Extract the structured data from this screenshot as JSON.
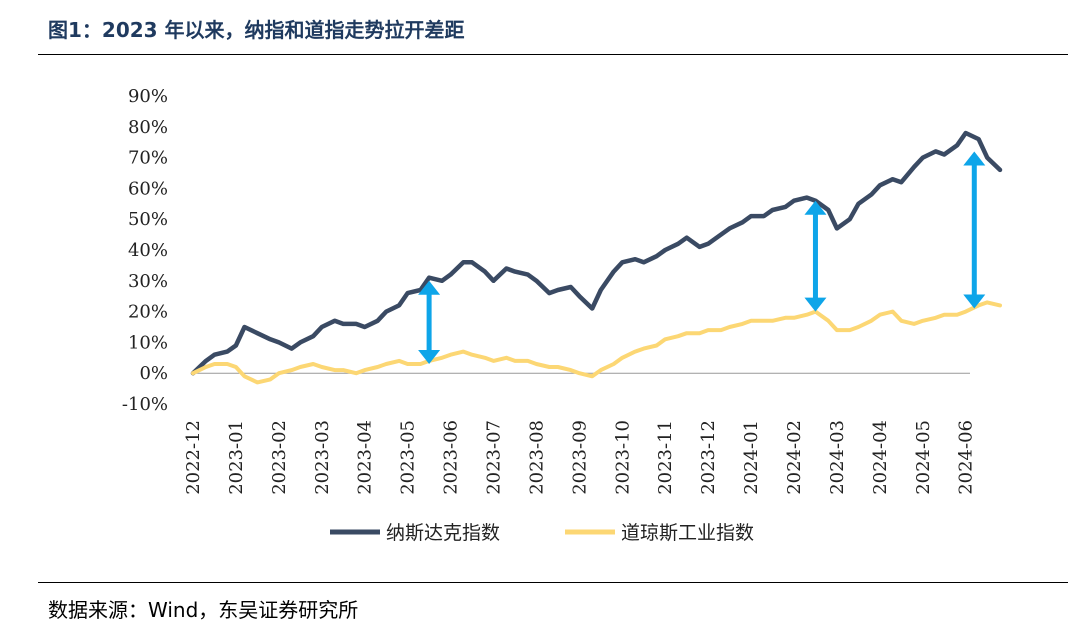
{
  "title": "图1：2023 年以来，纳指和道指走势拉开差距",
  "source": "数据来源：Wind，东吴证券研究所",
  "chart_data": {
    "type": "line",
    "title": "",
    "xlabel": "",
    "ylabel": "",
    "ylim": [
      -10,
      90
    ],
    "yticks": [
      "90%",
      "80%",
      "70%",
      "60%",
      "50%",
      "40%",
      "30%",
      "20%",
      "10%",
      "0%",
      "-10%"
    ],
    "ytick_values": [
      90,
      80,
      70,
      60,
      50,
      40,
      30,
      20,
      10,
      0,
      -10
    ],
    "categories": [
      "2022-12",
      "2023-01",
      "2023-02",
      "2023-03",
      "2023-04",
      "2023-05",
      "2023-06",
      "2023-07",
      "2023-08",
      "2023-09",
      "2023-10",
      "2023-11",
      "2023-12",
      "2024-01",
      "2024-02",
      "2024-03",
      "2024-04",
      "2024-05",
      "2024-06"
    ],
    "x": [
      0,
      0.3,
      0.5,
      0.8,
      1.0,
      1.2,
      1.5,
      1.8,
      2.0,
      2.3,
      2.5,
      2.8,
      3.0,
      3.3,
      3.5,
      3.8,
      4.0,
      4.3,
      4.5,
      4.8,
      5.0,
      5.3,
      5.5,
      5.8,
      6.0,
      6.3,
      6.5,
      6.8,
      7.0,
      7.3,
      7.5,
      7.8,
      8.0,
      8.3,
      8.5,
      8.8,
      9.0,
      9.3,
      9.5,
      9.8,
      10.0,
      10.3,
      10.5,
      10.8,
      11.0,
      11.3,
      11.5,
      11.8,
      12.0,
      12.3,
      12.5,
      12.8,
      13.0,
      13.3,
      13.5,
      13.8,
      14.0,
      14.3,
      14.5,
      14.8,
      15.0,
      15.3,
      15.5,
      15.8,
      16.0,
      16.3,
      16.5,
      16.8,
      17.0,
      17.3,
      17.5,
      17.8,
      18.0,
      18.3,
      18.5,
      18.8
    ],
    "series": [
      {
        "name": "纳斯达克指数",
        "color": "#3a4a63",
        "values": [
          0,
          4,
          6,
          7,
          9,
          15,
          13,
          11,
          10,
          8,
          10,
          12,
          15,
          17,
          16,
          16,
          15,
          17,
          20,
          22,
          26,
          27,
          31,
          30,
          32,
          36,
          36,
          33,
          30,
          34,
          33,
          32,
          30,
          26,
          27,
          28,
          25,
          21,
          27,
          33,
          36,
          37,
          36,
          38,
          40,
          42,
          44,
          41,
          42,
          45,
          47,
          49,
          51,
          51,
          53,
          54,
          56,
          57,
          56,
          53,
          47,
          50,
          55,
          58,
          61,
          63,
          62,
          67,
          70,
          72,
          71,
          74,
          78,
          76,
          70,
          66
        ]
      },
      {
        "name": "道琼斯工业指数",
        "color": "#fcd774",
        "values": [
          0,
          2,
          3,
          3,
          2,
          -1,
          -3,
          -2,
          0,
          1,
          2,
          3,
          2,
          1,
          1,
          0,
          1,
          2,
          3,
          4,
          3,
          3,
          4,
          5,
          6,
          7,
          6,
          5,
          4,
          5,
          4,
          4,
          3,
          2,
          2,
          1,
          0,
          -1,
          1,
          3,
          5,
          7,
          8,
          9,
          11,
          12,
          13,
          13,
          14,
          14,
          15,
          16,
          17,
          17,
          17,
          18,
          18,
          19,
          20,
          17,
          14,
          14,
          15,
          17,
          19,
          20,
          17,
          16,
          17,
          18,
          19,
          19,
          20,
          22,
          23,
          22
        ]
      }
    ],
    "legend": "bottom",
    "legend_entries": [
      "纳斯达克指数",
      "道琼斯工业指数"
    ],
    "annotations": [
      {
        "type": "double-arrow",
        "x": 5.5,
        "y_from": 3,
        "y_to": 30
      },
      {
        "type": "double-arrow",
        "x": 14.5,
        "y_from": 20,
        "y_to": 56
      },
      {
        "type": "double-arrow",
        "x": 18.2,
        "y_from": 21,
        "y_to": 72
      }
    ],
    "annotation_color": "#0ea5e9",
    "grid": false
  }
}
